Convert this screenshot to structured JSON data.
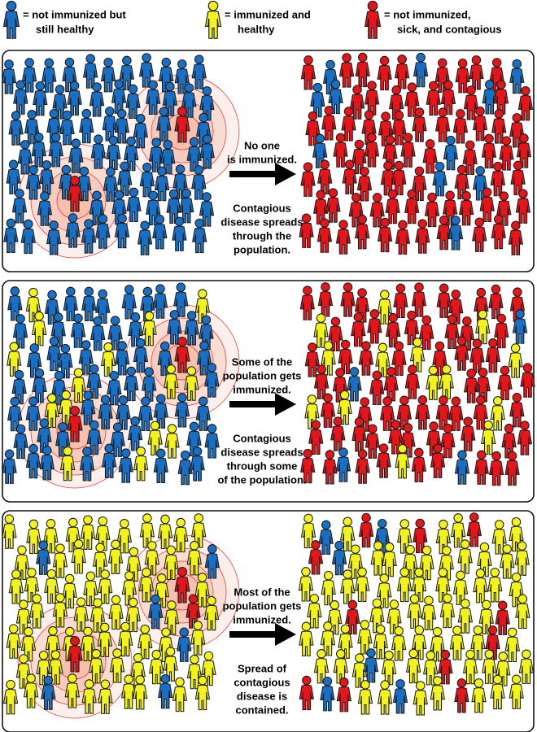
{
  "legend": [
    {
      "lines": [
        "= not immunized but",
        "still healthy"
      ]
    },
    {
      "lines": [
        "= immunized and",
        "healthy"
      ]
    },
    {
      "lines": [
        "= not immunized,",
        "sick, and contagious"
      ]
    }
  ],
  "panels": [
    {
      "status": [
        "No one",
        "is immunized."
      ],
      "outcome": [
        "Contagious",
        "disease spreads",
        "through the",
        "population."
      ]
    },
    {
      "status": [
        "Some of the",
        "population gets",
        "immunized."
      ],
      "outcome": [
        "Contagious",
        "disease spreads",
        "through some",
        "of the population."
      ]
    },
    {
      "status": [
        "Most of the",
        "population gets",
        "immunized."
      ],
      "outcome": [
        "Spread of",
        "contagious",
        "disease is",
        "contained."
      ]
    }
  ]
}
